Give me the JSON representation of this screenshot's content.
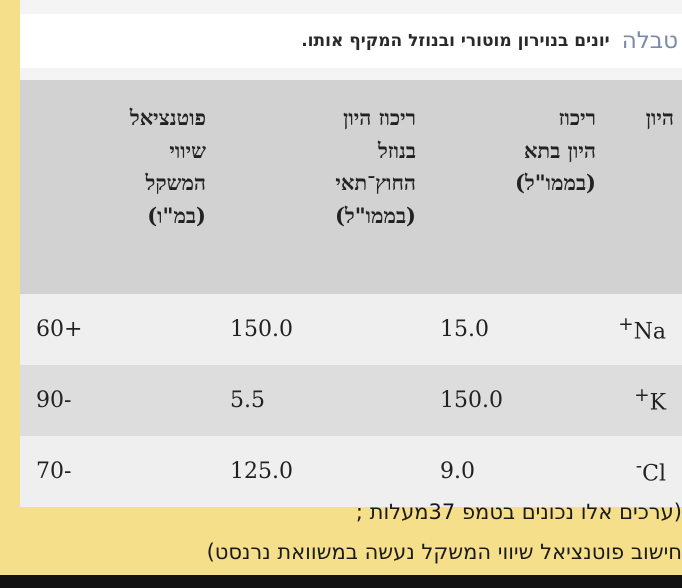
{
  "caption": {
    "label": "טבלה",
    "text": "יונים בנוירון מוטורי ובנוזל המקיף אותו."
  },
  "table": {
    "headers": [
      [
        "היון"
      ],
      [
        "ריכוז",
        "היון בתא",
        "(בממו\"ל)"
      ],
      [
        "ריכוז היון",
        "בנוזל",
        "החוץ־תאי",
        "(בממו\"ל)"
      ],
      [
        "פוטנציאל",
        "שיווי",
        "המשקל",
        "(במ\"ו)"
      ]
    ],
    "rows": [
      {
        "ion": "Na",
        "charge": "+",
        "inside": "15.0",
        "outside": "150.0",
        "potential": "+60"
      },
      {
        "ion": "K",
        "charge": "+",
        "inside": "150.0",
        "outside": "5.5",
        "potential": "-90"
      },
      {
        "ion": "Cl",
        "charge": "-",
        "inside": "9.0",
        "outside": "125.0",
        "potential": "-70"
      }
    ]
  },
  "footer": {
    "line1": "(ערכים אלו נכונים בטמפ 37מעלות ;",
    "line2": "חישוב פוטנציאל שיווי המשקל נעשה במשוואת נרנסט)"
  }
}
